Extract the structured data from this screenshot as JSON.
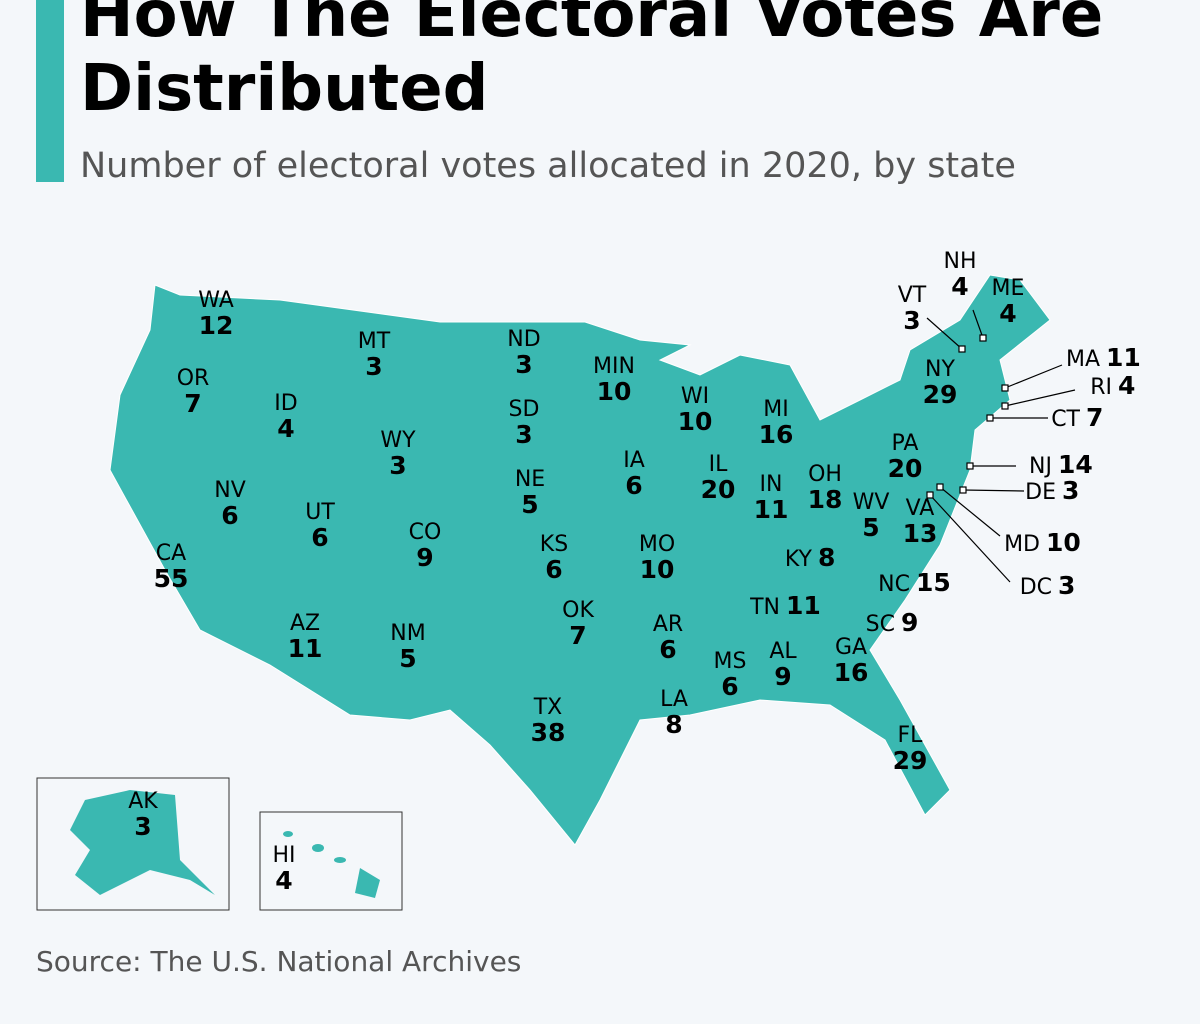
{
  "title": "How The Electoral Votes Are Distributed",
  "subtitle": "Number of electoral votes allocated in 2020, by state",
  "source": "Source: The U.S. National Archives",
  "colors": {
    "map_fill": "#3ab8b1",
    "accent": "#3ab8b1",
    "background": "#f4f7fa"
  },
  "states": [
    {
      "code": "WA",
      "votes": "12"
    },
    {
      "code": "OR",
      "votes": "7"
    },
    {
      "code": "CA",
      "votes": "55"
    },
    {
      "code": "ID",
      "votes": "4"
    },
    {
      "code": "NV",
      "votes": "6"
    },
    {
      "code": "MT",
      "votes": "3"
    },
    {
      "code": "WY",
      "votes": "3"
    },
    {
      "code": "UT",
      "votes": "6"
    },
    {
      "code": "AZ",
      "votes": "11"
    },
    {
      "code": "CO",
      "votes": "9"
    },
    {
      "code": "NM",
      "votes": "5"
    },
    {
      "code": "ND",
      "votes": "3"
    },
    {
      "code": "SD",
      "votes": "3"
    },
    {
      "code": "NE",
      "votes": "5"
    },
    {
      "code": "KS",
      "votes": "6"
    },
    {
      "code": "OK",
      "votes": "7"
    },
    {
      "code": "TX",
      "votes": "38"
    },
    {
      "code": "MIN",
      "votes": "10"
    },
    {
      "code": "IA",
      "votes": "6"
    },
    {
      "code": "MO",
      "votes": "10"
    },
    {
      "code": "AR",
      "votes": "6"
    },
    {
      "code": "LA",
      "votes": "8"
    },
    {
      "code": "WI",
      "votes": "10"
    },
    {
      "code": "IL",
      "votes": "20"
    },
    {
      "code": "MS",
      "votes": "6"
    },
    {
      "code": "MI",
      "votes": "16"
    },
    {
      "code": "IN",
      "votes": "11"
    },
    {
      "code": "KY",
      "votes": "8"
    },
    {
      "code": "TN",
      "votes": "11"
    },
    {
      "code": "AL",
      "votes": "9"
    },
    {
      "code": "OH",
      "votes": "18"
    },
    {
      "code": "GA",
      "votes": "16"
    },
    {
      "code": "FL",
      "votes": "29"
    },
    {
      "code": "SC",
      "votes": "9"
    },
    {
      "code": "NC",
      "votes": "15"
    },
    {
      "code": "WV",
      "votes": "5"
    },
    {
      "code": "VA",
      "votes": "13"
    },
    {
      "code": "PA",
      "votes": "20"
    },
    {
      "code": "NY",
      "votes": "29"
    },
    {
      "code": "VT",
      "votes": "3"
    },
    {
      "code": "NH",
      "votes": "4"
    },
    {
      "code": "ME",
      "votes": "4"
    },
    {
      "code": "MA",
      "votes": "11"
    },
    {
      "code": "RI",
      "votes": "4"
    },
    {
      "code": "CT",
      "votes": "7"
    },
    {
      "code": "NJ",
      "votes": "14"
    },
    {
      "code": "DE",
      "votes": "3"
    },
    {
      "code": "MD",
      "votes": "10"
    },
    {
      "code": "DC",
      "votes": "3"
    },
    {
      "code": "AK",
      "votes": "3"
    },
    {
      "code": "HI",
      "votes": "4"
    }
  ]
}
